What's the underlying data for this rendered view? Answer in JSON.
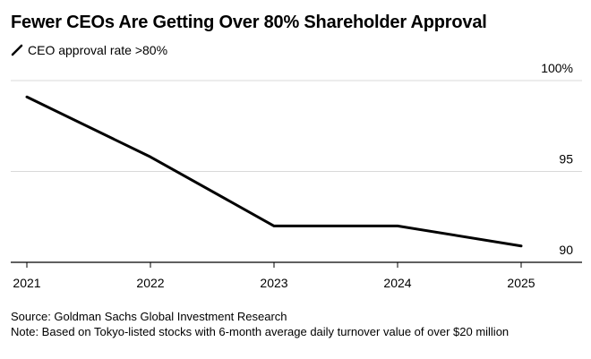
{
  "chart_data": {
    "type": "line",
    "title": "Fewer CEOs Are Getting Over 80% Shareholder Approval",
    "series": [
      {
        "name": "CEO approval rate >80%",
        "values": [
          99.1,
          95.8,
          92.0,
          92.0,
          90.9
        ]
      }
    ],
    "categories": [
      "2021",
      "2022",
      "2023",
      "2024",
      "2025"
    ],
    "x_tick_labels": [
      "2021",
      "2022",
      "2023",
      "2024",
      "2025"
    ],
    "y_ticks": [
      90,
      95,
      100
    ],
    "y_tick_labels": [
      "90",
      "95",
      "100%"
    ],
    "ylim": [
      90,
      100
    ],
    "xlabel": "",
    "ylabel": "",
    "grid": true,
    "legend": "top-left",
    "line_color": "#000000",
    "grid_color": "#d9d9d9"
  },
  "footer": {
    "source": "Source: Goldman Sachs Global Investment Research",
    "note": "Note: Based on Tokyo-listed stocks with 6-month average daily turnover value of over $20 million"
  }
}
